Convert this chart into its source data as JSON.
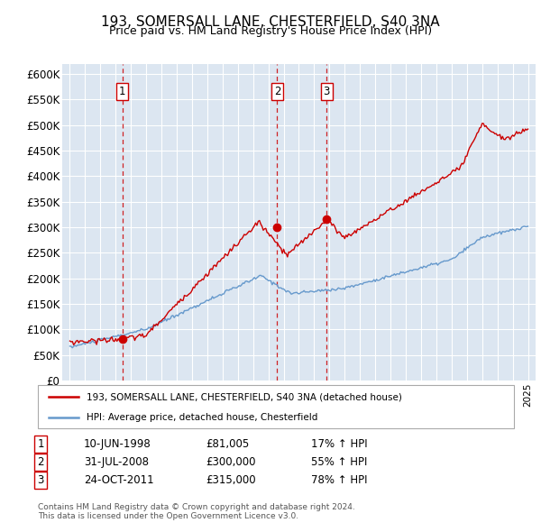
{
  "title": "193, SOMERSALL LANE, CHESTERFIELD, S40 3NA",
  "subtitle": "Price paid vs. HM Land Registry's House Price Index (HPI)",
  "legend_line1": "193, SOMERSALL LANE, CHESTERFIELD, S40 3NA (detached house)",
  "legend_line2": "HPI: Average price, detached house, Chesterfield",
  "sale_entries": [
    {
      "num": 1,
      "date": "10-JUN-1998",
      "price": "£81,005",
      "pct": "17% ↑ HPI",
      "year": 1998.44,
      "value": 81005
    },
    {
      "num": 2,
      "date": "31-JUL-2008",
      "price": "£300,000",
      "pct": "55% ↑ HPI",
      "year": 2008.58,
      "value": 300000
    },
    {
      "num": 3,
      "date": "24-OCT-2011",
      "price": "£315,000",
      "pct": "78% ↑ HPI",
      "year": 2011.81,
      "value": 315000
    }
  ],
  "footer1": "Contains HM Land Registry data © Crown copyright and database right 2024.",
  "footer2": "This data is licensed under the Open Government Licence v3.0.",
  "bg_color": "#dce6f1",
  "red_color": "#cc0000",
  "blue_color": "#6699cc",
  "ylim": [
    0,
    620000
  ],
  "yticks": [
    0,
    50000,
    100000,
    150000,
    200000,
    250000,
    300000,
    350000,
    400000,
    450000,
    500000,
    550000,
    600000
  ],
  "xlim_start": 1994.5,
  "xlim_end": 2025.5
}
